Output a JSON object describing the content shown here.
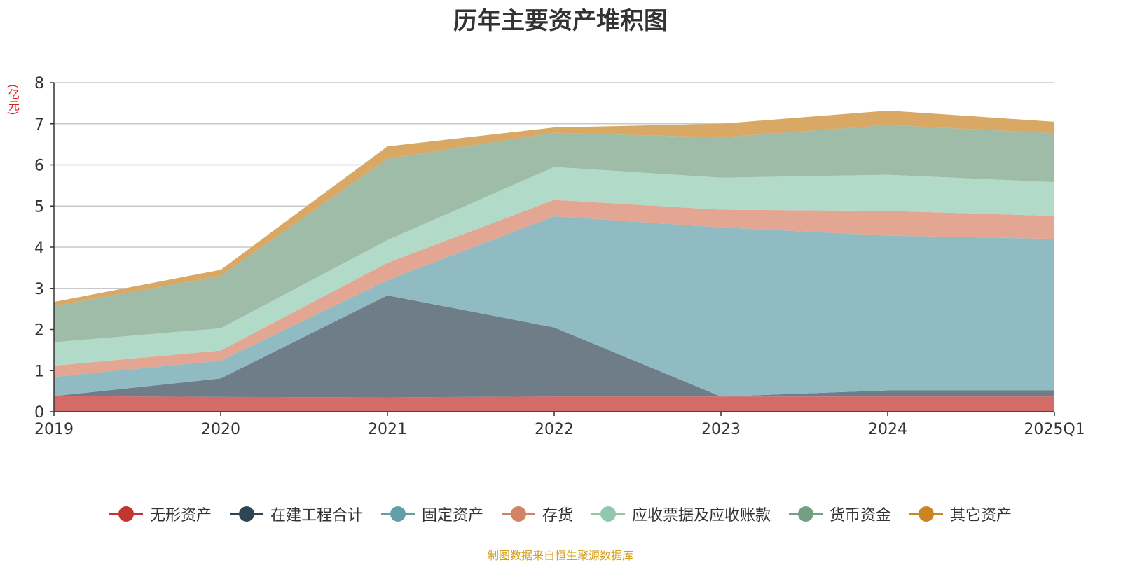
{
  "title": "历年主要资产堆积图",
  "unit_label": "(亿元)",
  "source": "制图数据来自恒生聚源数据库",
  "chart_data": {
    "type": "area",
    "stacked": true,
    "title": "历年主要资产堆积图",
    "ylabel": "(亿元)",
    "ylim": [
      0,
      8
    ],
    "yticks": [
      0,
      1,
      2,
      3,
      4,
      5,
      6,
      7,
      8
    ],
    "categories": [
      "2019",
      "2020",
      "2021",
      "2022",
      "2023",
      "2024",
      "2025Q1"
    ],
    "grid": true,
    "legend_position": "bottom",
    "series": [
      {
        "name": "无形资产",
        "color": "#c23531",
        "area_color": "#d46b69",
        "values": [
          0.38,
          0.36,
          0.35,
          0.37,
          0.37,
          0.37,
          0.37
        ]
      },
      {
        "name": "在建工程合计",
        "color": "#2f4554",
        "area_color": "#6f7d88",
        "values": [
          0.0,
          0.45,
          2.48,
          1.68,
          0.0,
          0.15,
          0.15
        ]
      },
      {
        "name": "固定资产",
        "color": "#61a0a8",
        "area_color": "#90bbc2",
        "values": [
          0.47,
          0.43,
          0.37,
          2.7,
          4.11,
          3.76,
          3.68
        ]
      },
      {
        "name": "存货",
        "color": "#d48265",
        "area_color": "#e2a692",
        "values": [
          0.27,
          0.25,
          0.42,
          0.4,
          0.43,
          0.6,
          0.56
        ]
      },
      {
        "name": "应收票据及应收账款",
        "color": "#91c7ae",
        "area_color": "#b1dbc8",
        "values": [
          0.57,
          0.54,
          0.55,
          0.8,
          0.78,
          0.88,
          0.82
        ]
      },
      {
        "name": "货币资金",
        "color": "#749f83",
        "area_color": "#9ebca8",
        "values": [
          0.88,
          1.27,
          1.98,
          0.83,
          0.98,
          1.21,
          1.19
        ]
      },
      {
        "name": "其它资产",
        "color": "#ca8622",
        "area_color": "#d9a864",
        "values": [
          0.1,
          0.15,
          0.3,
          0.13,
          0.33,
          0.35,
          0.28
        ]
      }
    ]
  }
}
